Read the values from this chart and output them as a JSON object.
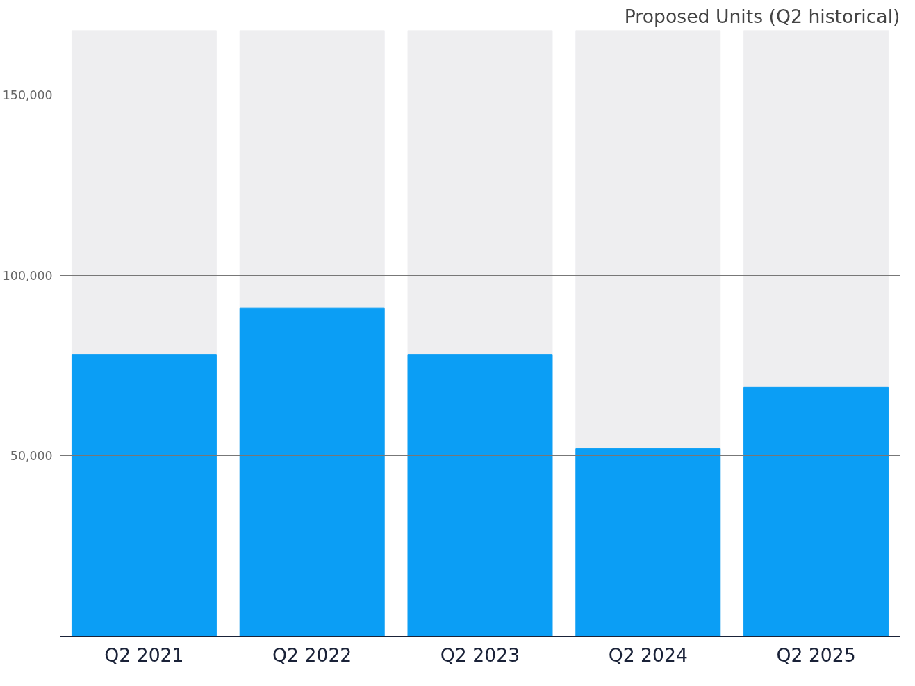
{
  "chart_data": {
    "type": "bar",
    "title": "Proposed Units (Q2 historical)",
    "categories": [
      "Q2 2021",
      "Q2 2022",
      "Q2 2023",
      "Q2 2024",
      "Q2 2025"
    ],
    "values": [
      78000,
      91000,
      78000,
      52000,
      69000
    ],
    "color": "#0b9ef5",
    "ylim": [
      0,
      168000
    ],
    "yticks": [
      {
        "value": 50000,
        "label": "50,000"
      },
      {
        "value": 100000,
        "label": "100,000"
      },
      {
        "value": 150000,
        "label": "150,000"
      }
    ],
    "grid": "y"
  }
}
